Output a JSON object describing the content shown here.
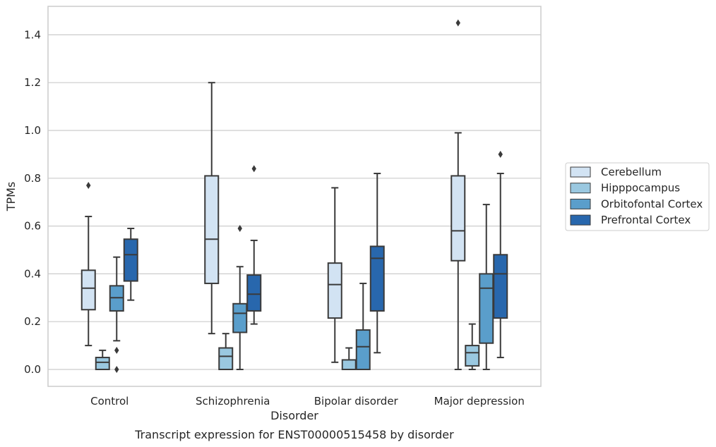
{
  "chart_data": {
    "type": "boxplot",
    "caption": "Transcript expression for ENST00000515458 by disorder",
    "xlabel": "Disorder",
    "ylabel": "TPMs",
    "ylim": [
      -0.07,
      1.52
    ],
    "yticks": [
      "0.0",
      "0.2",
      "0.4",
      "0.6",
      "0.8",
      "1.0",
      "1.2",
      "1.4"
    ],
    "grid": "horizontal",
    "legend_position": "right",
    "categories": [
      "Control",
      "Schizophrenia",
      "Bipolar disorder",
      "Major depression"
    ],
    "series": [
      {
        "name": "Cerebellum",
        "color": "#d2e3f3",
        "boxes": [
          {
            "whislo": 0.1,
            "q1": 0.25,
            "med": 0.34,
            "q3": 0.415,
            "whishi": 0.64,
            "fliers": [
              0.77
            ]
          },
          {
            "whislo": 0.15,
            "q1": 0.36,
            "med": 0.545,
            "q3": 0.81,
            "whishi": 1.2,
            "fliers": []
          },
          {
            "whislo": 0.03,
            "q1": 0.215,
            "med": 0.355,
            "q3": 0.445,
            "whishi": 0.76,
            "fliers": []
          },
          {
            "whislo": 0.0,
            "q1": 0.455,
            "med": 0.58,
            "q3": 0.81,
            "whishi": 0.99,
            "fliers": [
              1.45
            ]
          }
        ]
      },
      {
        "name": "Hipppocampus",
        "color": "#9ac8e0",
        "boxes": [
          {
            "whislo": 0.0,
            "q1": 0.0,
            "med": 0.03,
            "q3": 0.05,
            "whishi": 0.08,
            "fliers": []
          },
          {
            "whislo": 0.0,
            "q1": 0.0,
            "med": 0.055,
            "q3": 0.09,
            "whishi": 0.15,
            "fliers": []
          },
          {
            "whislo": 0.0,
            "q1": 0.0,
            "med": 0.0,
            "q3": 0.04,
            "whishi": 0.09,
            "fliers": []
          },
          {
            "whislo": 0.0,
            "q1": 0.015,
            "med": 0.07,
            "q3": 0.1,
            "whishi": 0.19,
            "fliers": []
          }
        ]
      },
      {
        "name": "Orbitofontal Cortex",
        "color": "#5a9ecb",
        "boxes": [
          {
            "whislo": 0.12,
            "q1": 0.245,
            "med": 0.3,
            "q3": 0.35,
            "whishi": 0.47,
            "fliers": [
              0.08,
              0.0
            ]
          },
          {
            "whislo": 0.0,
            "q1": 0.155,
            "med": 0.235,
            "q3": 0.275,
            "whishi": 0.43,
            "fliers": [
              0.59
            ]
          },
          {
            "whislo": 0.0,
            "q1": 0.0,
            "med": 0.095,
            "q3": 0.165,
            "whishi": 0.36,
            "fliers": []
          },
          {
            "whislo": 0.0,
            "q1": 0.11,
            "med": 0.34,
            "q3": 0.4,
            "whishi": 0.69,
            "fliers": []
          }
        ]
      },
      {
        "name": "Prefrontal Cortex",
        "color": "#2867ad",
        "boxes": [
          {
            "whislo": 0.29,
            "q1": 0.37,
            "med": 0.48,
            "q3": 0.545,
            "whishi": 0.59,
            "fliers": []
          },
          {
            "whislo": 0.19,
            "q1": 0.245,
            "med": 0.315,
            "q3": 0.395,
            "whishi": 0.54,
            "fliers": [
              0.84
            ]
          },
          {
            "whislo": 0.07,
            "q1": 0.245,
            "med": 0.465,
            "q3": 0.515,
            "whishi": 0.82,
            "fliers": []
          },
          {
            "whislo": 0.05,
            "q1": 0.215,
            "med": 0.4,
            "q3": 0.48,
            "whishi": 0.82,
            "fliers": [
              0.9
            ]
          }
        ]
      }
    ]
  }
}
